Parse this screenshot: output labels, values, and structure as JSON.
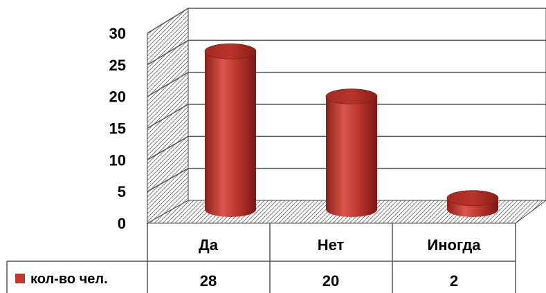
{
  "chart_data": {
    "type": "bar",
    "style": "3d-cylinder",
    "categories": [
      "Да",
      "Нет",
      "Иногда"
    ],
    "series": [
      {
        "name": "кол-во чел.",
        "values": [
          28,
          20,
          2
        ],
        "color": "#c0392f"
      }
    ],
    "ylim": [
      0,
      30
    ],
    "yticks": [
      0,
      5,
      10,
      15,
      20,
      25,
      30
    ],
    "grid": true,
    "data_table": true,
    "legend_placement": "data-table"
  }
}
